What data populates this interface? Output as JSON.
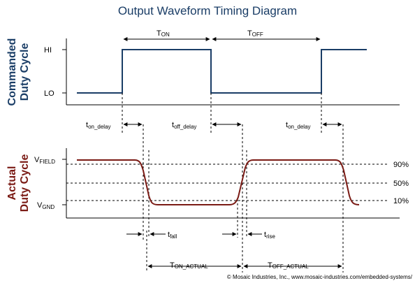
{
  "title": "Output Waveform Timing Diagram",
  "commanded": {
    "axis_title_line1": "Commanded",
    "axis_title_line2": "Duty Cycle",
    "level_hi": "HI",
    "level_lo": "LO",
    "t_on_main": "T",
    "t_on_sub": "ON",
    "t_off_main": "T",
    "t_off_sub": "OFF"
  },
  "delays": {
    "on_main": "t",
    "on_sub": "on_delay",
    "off_main": "t",
    "off_sub": "off_delay"
  },
  "actual": {
    "axis_title_line1": "Actual",
    "axis_title_line2": "Duty Cycle",
    "vfield_main": "V",
    "vfield_sub": "FIELD",
    "vgnd_main": "V",
    "vgnd_sub": "GND",
    "pct_90": "90%",
    "pct_50": "50%",
    "pct_10": "10%",
    "tfall_main": "t",
    "tfall_sub": "fall",
    "trise_main": "t",
    "trise_sub": "rise",
    "ton_actual_main": "T",
    "ton_actual_sub": "ON_ACTUAL",
    "toff_actual_main": "T",
    "toff_actual_sub": "OFF_ACTUAL"
  },
  "colors": {
    "title": "#1a3d66",
    "commanded_signal": "#1a3d66",
    "actual_signal": "#7a1a14",
    "axis": "#000000"
  },
  "copyright": "© Mosaic Industries, Inc., www.mosaic-industries.com/embedded-systems/"
}
